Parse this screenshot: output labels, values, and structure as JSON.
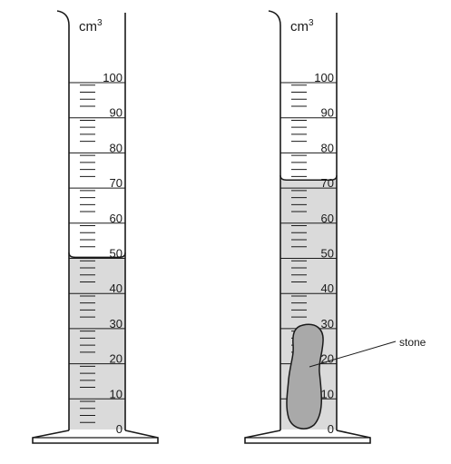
{
  "cylinders": [
    {
      "id": "left",
      "unit_base": "cm",
      "unit_exponent": "3",
      "scale_labels": [
        "100",
        "90",
        "80",
        "70",
        "60",
        "50",
        "40",
        "30",
        "20",
        "10",
        "0"
      ],
      "liquid_level_cm3": 49,
      "has_stone": false
    },
    {
      "id": "right",
      "unit_base": "cm",
      "unit_exponent": "3",
      "scale_labels": [
        "100",
        "90",
        "80",
        "70",
        "60",
        "50",
        "40",
        "30",
        "20",
        "10",
        "0"
      ],
      "liquid_level_cm3": 71,
      "has_stone": true
    }
  ],
  "stone_label": "stone",
  "colors": {
    "liquid": "#dadada",
    "stone": "#a9a9a9",
    "line": "#1a1a1a",
    "background": "#ffffff"
  }
}
